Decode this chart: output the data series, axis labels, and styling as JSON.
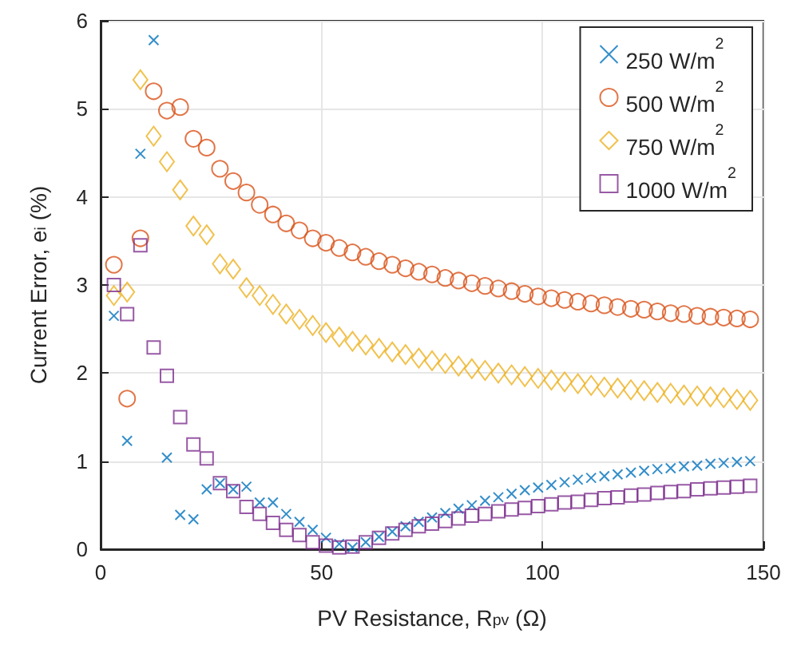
{
  "chart_data": {
    "type": "scatter",
    "xlabel": "PV Resistance, R$_{pv}$ (Ω)",
    "ylabel": "Current Error, e$_{i}$ (%)",
    "x": [
      3,
      6,
      9,
      12,
      15,
      18,
      21,
      24,
      27,
      30,
      33,
      36,
      39,
      42,
      45,
      48,
      51,
      54,
      57,
      60,
      63,
      66,
      69,
      72,
      75,
      78,
      81,
      84,
      87,
      90,
      93,
      96,
      99,
      102,
      105,
      108,
      111,
      114,
      117,
      120,
      123,
      126,
      129,
      132,
      135,
      138,
      141,
      144,
      147
    ],
    "series": [
      {
        "name": "250 W/m$^{2}$",
        "color": "#0072bd",
        "marker": "cross",
        "values": [
          2.65,
          1.23,
          4.49,
          5.78,
          1.04,
          0.39,
          0.34,
          0.68,
          0.75,
          0.68,
          0.71,
          0.53,
          0.53,
          0.4,
          0.31,
          0.22,
          0.13,
          0.06,
          0.02,
          0.08,
          0.14,
          0.2,
          0.26,
          0.31,
          0.36,
          0.41,
          0.46,
          0.5,
          0.55,
          0.59,
          0.63,
          0.67,
          0.7,
          0.73,
          0.76,
          0.79,
          0.81,
          0.83,
          0.85,
          0.87,
          0.89,
          0.91,
          0.92,
          0.94,
          0.95,
          0.97,
          0.98,
          0.99,
          1.0
        ]
      },
      {
        "name": "500 W/m$^{2}$",
        "color": "#d95319",
        "marker": "circle",
        "values": [
          3.23,
          1.71,
          3.53,
          5.2,
          4.98,
          5.02,
          4.66,
          4.56,
          4.32,
          4.18,
          4.05,
          3.91,
          3.8,
          3.7,
          3.62,
          3.53,
          3.48,
          3.42,
          3.37,
          3.32,
          3.27,
          3.23,
          3.19,
          3.15,
          3.12,
          3.08,
          3.05,
          3.02,
          2.99,
          2.96,
          2.93,
          2.9,
          2.87,
          2.85,
          2.83,
          2.81,
          2.79,
          2.77,
          2.75,
          2.73,
          2.72,
          2.7,
          2.68,
          2.67,
          2.65,
          2.64,
          2.63,
          2.62,
          2.61
        ]
      },
      {
        "name": "750 W/m$^{2}$",
        "color": "#edb120",
        "marker": "diamond",
        "values": [
          2.88,
          2.92,
          5.33,
          4.69,
          4.4,
          4.08,
          3.67,
          3.57,
          3.24,
          3.18,
          2.97,
          2.88,
          2.78,
          2.67,
          2.61,
          2.54,
          2.46,
          2.41,
          2.36,
          2.32,
          2.28,
          2.24,
          2.21,
          2.17,
          2.14,
          2.11,
          2.08,
          2.05,
          2.03,
          2.0,
          1.98,
          1.96,
          1.94,
          1.92,
          1.9,
          1.88,
          1.86,
          1.84,
          1.83,
          1.81,
          1.8,
          1.78,
          1.77,
          1.75,
          1.74,
          1.73,
          1.72,
          1.7,
          1.69
        ]
      },
      {
        "name": "1000 W/m$^{2}$",
        "color": "#7e2f8e",
        "marker": "square",
        "values": [
          3.0,
          2.67,
          3.45,
          2.29,
          1.97,
          1.5,
          1.19,
          1.03,
          0.75,
          0.66,
          0.48,
          0.4,
          0.3,
          0.22,
          0.16,
          0.08,
          0.04,
          0.02,
          0.03,
          0.08,
          0.13,
          0.18,
          0.22,
          0.26,
          0.29,
          0.32,
          0.35,
          0.38,
          0.4,
          0.43,
          0.45,
          0.47,
          0.49,
          0.51,
          0.53,
          0.54,
          0.56,
          0.58,
          0.59,
          0.61,
          0.62,
          0.64,
          0.65,
          0.66,
          0.68,
          0.69,
          0.7,
          0.71,
          0.72
        ]
      }
    ],
    "xlim": [
      0,
      150
    ],
    "xticks": [
      0,
      50,
      100,
      150
    ],
    "ylim": [
      0,
      6
    ],
    "yticks": [
      0,
      1,
      2,
      3,
      4,
      5,
      6
    ],
    "grid": true,
    "legend": "top right"
  }
}
